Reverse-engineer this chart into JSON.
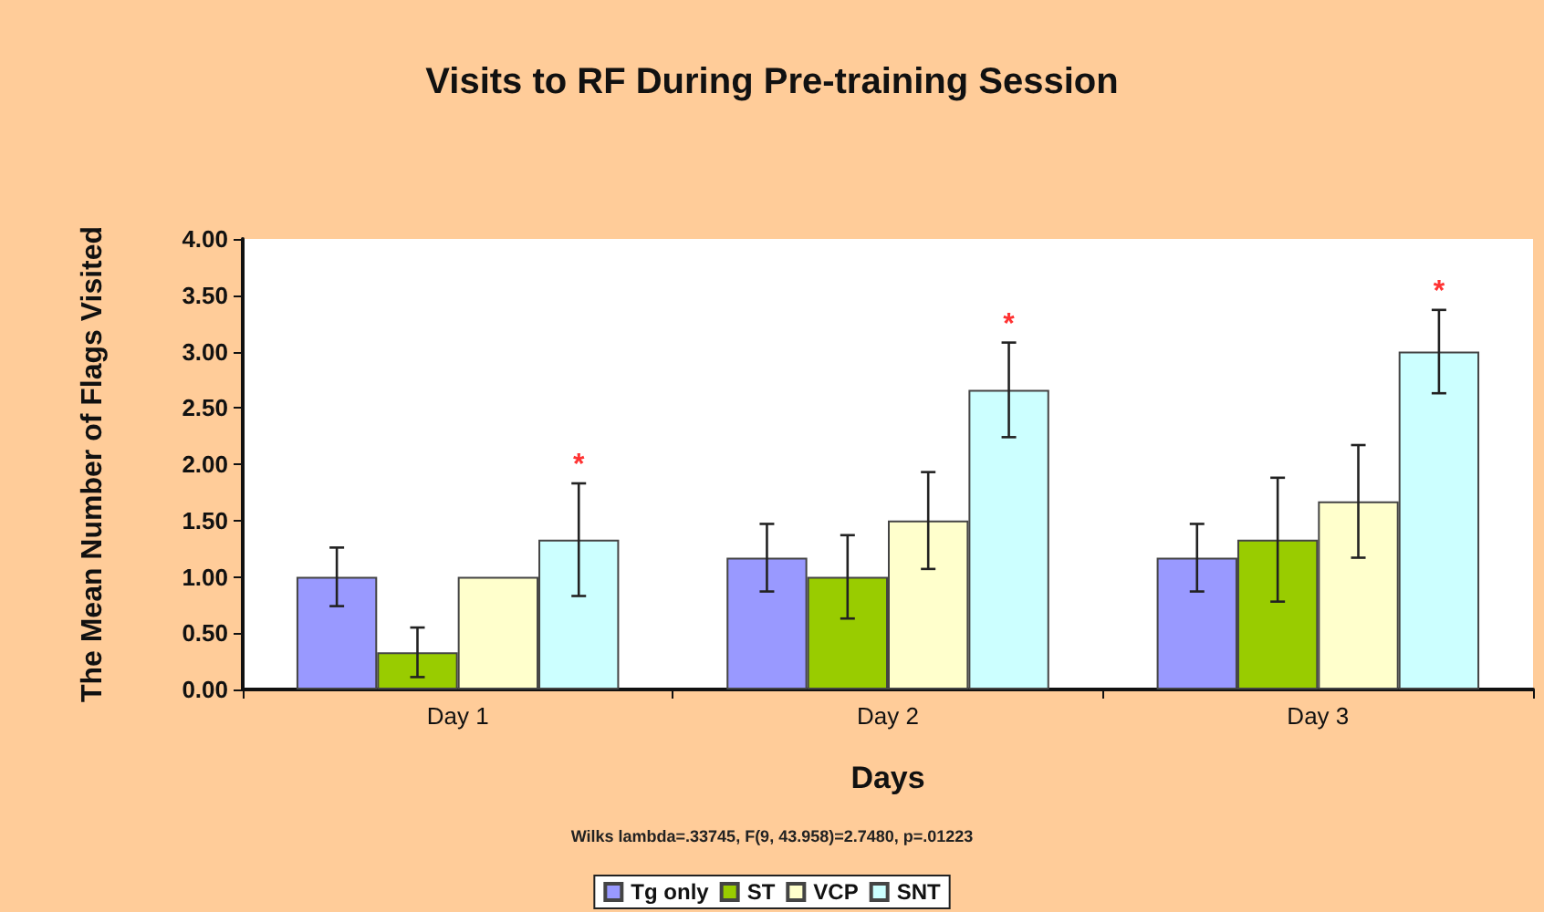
{
  "chart_data": {
    "type": "bar",
    "title": "Visits to RF During Pre-training Session",
    "xlabel": "Days",
    "ylabel": "The Mean Number of Flags Visited",
    "categories": [
      "Day 1",
      "Day 2",
      "Day 3"
    ],
    "series": [
      {
        "name": "Tg only",
        "color": "#9999ff",
        "values": [
          1.0,
          1.17,
          1.17
        ],
        "errors": [
          0.26,
          0.3,
          0.3
        ]
      },
      {
        "name": "ST",
        "color": "#99cc00",
        "values": [
          0.33,
          1.0,
          1.33
        ],
        "errors": [
          0.22,
          0.37,
          0.55
        ]
      },
      {
        "name": "VCP",
        "color": "#ffffcc",
        "values": [
          1.0,
          1.5,
          1.67
        ],
        "errors": [
          null,
          0.43,
          0.5
        ]
      },
      {
        "name": "SNT",
        "color": "#ccffff",
        "values": [
          1.33,
          2.66,
          3.0
        ],
        "errors": [
          0.5,
          0.42,
          0.37
        ],
        "value_labels": [
          "*",
          "*",
          "*"
        ]
      }
    ],
    "ylim": [
      0,
      4
    ],
    "yticks": [
      {
        "value": 0,
        "label": "0.00"
      },
      {
        "value": 0.5,
        "label": "0.50"
      },
      {
        "value": 1,
        "label": "1.00"
      },
      {
        "value": 1.5,
        "label": "1.50"
      },
      {
        "value": 2,
        "label": "2.00"
      },
      {
        "value": 2.5,
        "label": "2.50"
      },
      {
        "value": 3,
        "label": "3.00"
      },
      {
        "value": 3.5,
        "label": "3.50"
      },
      {
        "value": 4,
        "label": "4.00"
      }
    ],
    "annotations": [
      "Wilks lambda=.33745, F(9, 43.958)=2.7480, p=.01223"
    ],
    "grid": false,
    "legend": "bottom"
  }
}
